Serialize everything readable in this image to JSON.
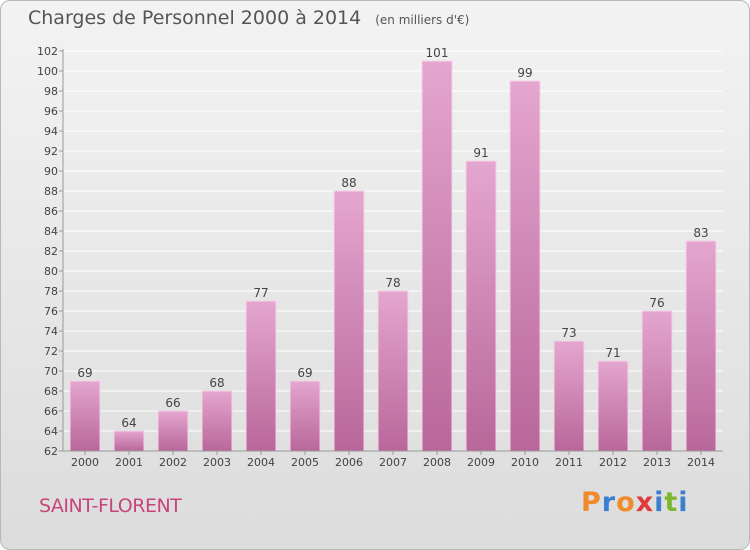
{
  "title": "Charges de Personnel 2000 à 2014",
  "subtitle": "(en milliers d'€)",
  "commune": "SAINT-FLORENT",
  "logo": {
    "letters": [
      "P",
      "r",
      "o",
      "x",
      "i",
      "t",
      "i"
    ],
    "colors": [
      "#f08a2a",
      "#3b7fd0",
      "#f08a2a",
      "#e03a3a",
      "#3b7fd0",
      "#7cb82f",
      "#3b7fd0"
    ]
  },
  "colors": {
    "bar_top": "#e4a6cf",
    "bar_bottom": "#b9679a",
    "grid": "#ffffff",
    "axis": "#999999"
  },
  "chart_data": {
    "type": "bar",
    "title": "Charges de Personnel 2000 à 2014",
    "subtitle": "(en milliers d'€)",
    "categories": [
      "2000",
      "2001",
      "2002",
      "2003",
      "2004",
      "2005",
      "2006",
      "2007",
      "2008",
      "2009",
      "2010",
      "2011",
      "2012",
      "2013",
      "2014"
    ],
    "values": [
      69,
      64,
      66,
      68,
      77,
      69,
      88,
      78,
      101,
      91,
      99,
      73,
      71,
      76,
      83
    ],
    "data_labels": [
      "69",
      "64",
      "66",
      "68",
      "77",
      "69",
      "88",
      "78",
      "101",
      "91",
      "99",
      "73",
      "71",
      "76",
      "83"
    ],
    "y_ticks": [
      "62",
      "64",
      "66",
      "68",
      "70",
      "72",
      "74",
      "76",
      "78",
      "80",
      "82",
      "84",
      "86",
      "88",
      "90",
      "92",
      "94",
      "96",
      "98",
      "100",
      "102"
    ],
    "ylim": [
      62,
      102
    ],
    "grid": true,
    "legend": "none"
  }
}
